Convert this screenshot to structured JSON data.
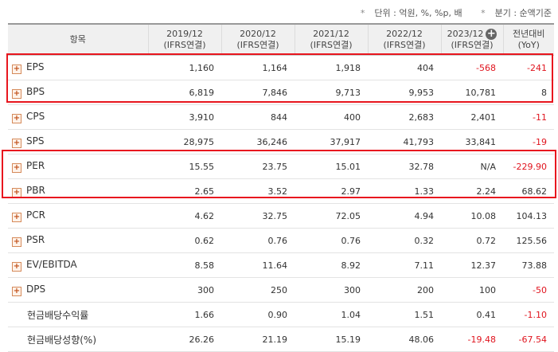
{
  "notes": {
    "unit": "단위 : 억원, %, %p, 배",
    "basis": "분기 : 순액기준"
  },
  "header": {
    "item": "항목",
    "cols": [
      {
        "period": "2019/12",
        "type": "(IFRS연결)"
      },
      {
        "period": "2020/12",
        "type": "(IFRS연결)"
      },
      {
        "period": "2021/12",
        "type": "(IFRS연결)"
      },
      {
        "period": "2022/12",
        "type": "(IFRS연결)"
      },
      {
        "period": "2023/12",
        "type": "(IFRS연결)"
      }
    ],
    "yoy_line1": "전년대비",
    "yoy_line2": "(YoY)",
    "expand_icon": "plus-circle-icon"
  },
  "rows": [
    {
      "label": "EPS",
      "values": [
        "1,160",
        "1,164",
        "1,918",
        "404",
        "-568"
      ],
      "yoy": "-241",
      "expandable": true
    },
    {
      "label": "BPS",
      "values": [
        "6,819",
        "7,846",
        "9,713",
        "9,953",
        "10,781"
      ],
      "yoy": "8",
      "expandable": true
    },
    {
      "label": "CPS",
      "values": [
        "3,910",
        "844",
        "400",
        "2,683",
        "2,401"
      ],
      "yoy": "-11",
      "expandable": true
    },
    {
      "label": "SPS",
      "values": [
        "28,975",
        "36,246",
        "37,917",
        "41,793",
        "33,841"
      ],
      "yoy": "-19",
      "expandable": true
    },
    {
      "label": "PER",
      "values": [
        "15.55",
        "23.75",
        "15.01",
        "32.78",
        "N/A"
      ],
      "yoy": "-229.90",
      "expandable": true
    },
    {
      "label": "PBR",
      "values": [
        "2.65",
        "3.52",
        "2.97",
        "1.33",
        "2.24"
      ],
      "yoy": "68.62",
      "expandable": true
    },
    {
      "label": "PCR",
      "values": [
        "4.62",
        "32.75",
        "72.05",
        "4.94",
        "10.08"
      ],
      "yoy": "104.13",
      "expandable": true
    },
    {
      "label": "PSR",
      "values": [
        "0.62",
        "0.76",
        "0.76",
        "0.32",
        "0.72"
      ],
      "yoy": "125.56",
      "expandable": true
    },
    {
      "label": "EV/EBITDA",
      "values": [
        "8.58",
        "11.64",
        "8.92",
        "7.11",
        "12.37"
      ],
      "yoy": "73.88",
      "expandable": true
    },
    {
      "label": "DPS",
      "values": [
        "300",
        "250",
        "300",
        "200",
        "100"
      ],
      "yoy": "-50",
      "expandable": true
    },
    {
      "label": "현금배당수익률",
      "values": [
        "1.66",
        "0.90",
        "1.04",
        "1.51",
        "0.41"
      ],
      "yoy": "-1.10",
      "expandable": false
    },
    {
      "label": "현금배당성향(%)",
      "values": [
        "26.26",
        "21.19",
        "15.19",
        "48.06",
        "-19.48"
      ],
      "yoy": "-67.54",
      "expandable": false
    }
  ],
  "colors": {
    "negative": "#e0141e",
    "highlight": "#e8161e",
    "header_bg": "#f0f0f0"
  }
}
